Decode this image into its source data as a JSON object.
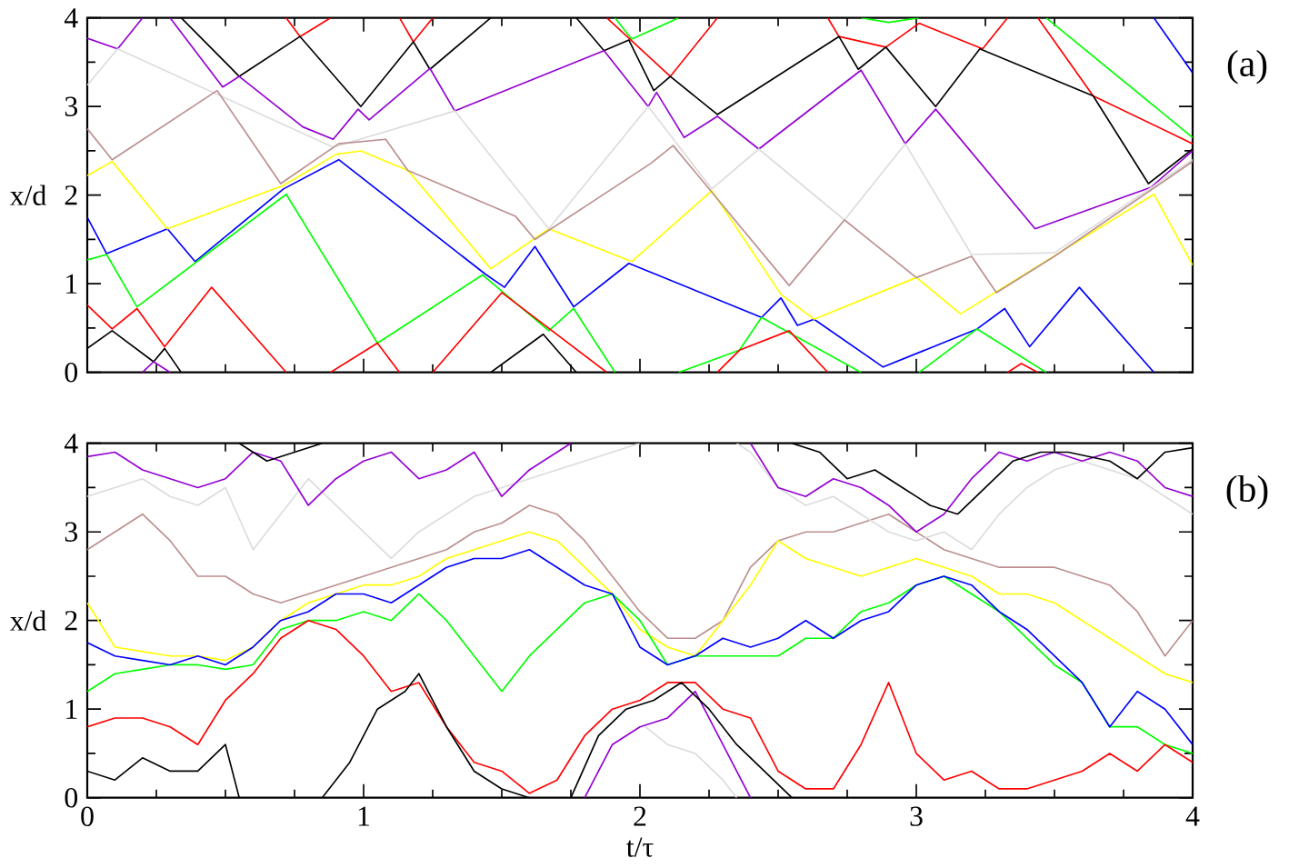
{
  "chart_data": [
    {
      "type": "line",
      "ylabel": "x/d",
      "annotations": [
        "(a)"
      ],
      "xlim": [
        0,
        4
      ],
      "ylim": [
        0,
        4
      ],
      "tick_labels": "y",
      "xticks": [
        0,
        {
          "value": 0.25,
          "label": null
        },
        {
          "value": 0.5,
          "label": null
        },
        {
          "value": 0.75,
          "label": null
        },
        1,
        {
          "value": 1.25,
          "label": null
        },
        {
          "value": 1.5,
          "label": null
        },
        {
          "value": 1.75,
          "label": null
        },
        2,
        {
          "value": 2.25,
          "label": null
        },
        {
          "value": 2.5,
          "label": null
        },
        {
          "value": 2.75,
          "label": null
        },
        3,
        {
          "value": 3.25,
          "label": null
        },
        {
          "value": 3.5,
          "label": null
        },
        {
          "value": 3.75,
          "label": null
        },
        4
      ],
      "yticks": [
        0,
        {
          "value": 0.5,
          "label": null
        },
        1,
        {
          "value": 1.5,
          "label": null
        },
        2,
        {
          "value": 2.5,
          "label": null
        },
        3,
        {
          "value": 3.5,
          "label": null
        },
        4
      ],
      "series": [
        {
          "color": "#0000ff",
          "x": [
            0,
            0.07,
            0.29,
            0.39,
            0.71,
            0.91,
            1.44,
            1.51,
            1.62,
            1.76,
            1.96,
            2.44,
            2.51,
            2.57,
            2.63,
            2.88,
            3.22,
            3.32,
            3.41,
            3.59,
            3.86
          ],
          "values": [
            1.75,
            1.34,
            1.62,
            1.25,
            2.07,
            2.4,
            1.11,
            0.96,
            1.42,
            0.74,
            1.23,
            0.62,
            0.84,
            0.53,
            0.6,
            0.06,
            0.49,
            0.72,
            0.29,
            0.96,
            0
          ]
        },
        {
          "color": "#0000ff",
          "x": [
            3.86,
            4
          ],
          "values": [
            4,
            3.38
          ]
        },
        {
          "color": "#ffff00",
          "x": [
            0,
            0.09,
            0.29,
            0.71,
            0.9,
            0.99,
            1.16,
            1.46,
            1.67,
            1.97,
            2.26,
            2.51,
            2.63,
            3.0,
            3.16,
            3.86,
            4
          ],
          "values": [
            2.22,
            2.38,
            1.62,
            2.11,
            2.46,
            2.5,
            2.28,
            1.17,
            1.62,
            1.25,
            2.05,
            0.88,
            0.6,
            1.07,
            0.66,
            2.01,
            1.21
          ]
        },
        {
          "color": "#00ff00",
          "x": [
            0,
            0.07,
            0.18,
            0.72,
            1.05,
            1.43,
            1.67,
            1.76,
            1.91
          ],
          "values": [
            1.27,
            1.33,
            0.74,
            2.01,
            0.33,
            1.1,
            0.47,
            0.72,
            0
          ]
        },
        {
          "color": "#00ff00",
          "x": [
            1.91,
            1.97,
            2.14
          ],
          "values": [
            4,
            3.76,
            4
          ]
        },
        {
          "color": "#00ff00",
          "x": [
            2.14,
            2.36,
            2.44,
            2.8
          ],
          "values": [
            0,
            0.25,
            0.62,
            0
          ]
        },
        {
          "color": "#00ff00",
          "x": [
            2.8,
            2.9,
            3.01
          ],
          "values": [
            4,
            3.95,
            4
          ]
        },
        {
          "color": "#00ff00",
          "x": [
            3.01,
            3.22,
            3.47
          ],
          "values": [
            0,
            0.49,
            0
          ]
        },
        {
          "color": "#00ff00",
          "x": [
            3.47,
            4
          ],
          "values": [
            4,
            2.65
          ]
        },
        {
          "color": "#ff0000",
          "x": [
            0,
            0.09,
            0.18,
            0.28,
            0.45,
            0.72
          ],
          "values": [
            0.76,
            0.49,
            0.72,
            0.29,
            0.96,
            0
          ]
        },
        {
          "color": "#ff0000",
          "x": [
            0.72,
            0.77,
            0.88
          ],
          "values": [
            4,
            3.79,
            4
          ]
        },
        {
          "color": "#ff0000",
          "x": [
            0.88,
            1.05,
            1.13
          ],
          "values": [
            0,
            0.33,
            0
          ]
        },
        {
          "color": "#ff0000",
          "x": [
            1.13,
            1.18,
            1.25
          ],
          "values": [
            4,
            3.73,
            4
          ]
        },
        {
          "color": "#ff0000",
          "x": [
            1.25,
            1.5,
            1.88
          ],
          "values": [
            0,
            0.9,
            0
          ]
        },
        {
          "color": "#ff0000",
          "x": [
            1.88,
            2.11,
            2.28
          ],
          "values": [
            4,
            3.34,
            4
          ]
        },
        {
          "color": "#ff0000",
          "x": [
            2.28,
            2.36,
            2.54,
            2.68
          ],
          "values": [
            0,
            0.25,
            0.47,
            0
          ]
        },
        {
          "color": "#ff0000",
          "x": [
            2.68,
            2.72,
            2.89,
            3.01,
            3.24,
            3.33
          ],
          "values": [
            4,
            3.79,
            3.67,
            3.94,
            3.65,
            4
          ]
        },
        {
          "color": "#ff0000",
          "x": [
            3.33,
            3.38,
            3.44
          ],
          "values": [
            0,
            0.1,
            0
          ]
        },
        {
          "color": "#ff0000",
          "x": [
            3.44,
            3.64,
            4
          ],
          "values": [
            4,
            3.12,
            2.58
          ]
        },
        {
          "color": "#000000",
          "x": [
            0,
            0.09,
            0.24,
            0.28,
            0.34
          ],
          "values": [
            0.27,
            0.47,
            0.12,
            0.27,
            0
          ]
        },
        {
          "color": "#000000",
          "x": [
            0.34,
            0.55,
            0.77,
            0.99,
            1.18,
            1.24,
            1.46
          ],
          "values": [
            4,
            3.34,
            3.79,
            3.0,
            3.73,
            3.42,
            4
          ]
        },
        {
          "color": "#000000",
          "x": [
            1.46,
            1.65,
            1.77
          ],
          "values": [
            0,
            0.43,
            0
          ]
        },
        {
          "color": "#000000",
          "x": [
            1.77,
            1.87,
            1.96,
            2.05,
            2.11,
            2.28,
            2.72,
            2.79,
            2.89,
            3.07,
            3.23,
            3.64,
            3.84,
            4
          ],
          "values": [
            4,
            3.63,
            3.75,
            3.18,
            3.34,
            2.91,
            3.79,
            3.42,
            3.67,
            3.0,
            3.65,
            3.12,
            2.13,
            2.52
          ]
        },
        {
          "color": "#9400d3",
          "x": [
            0,
            0.11,
            0.2
          ],
          "values": [
            3.77,
            3.65,
            4
          ]
        },
        {
          "color": "#9400d3",
          "x": [
            0.2,
            0.24,
            0.3
          ],
          "values": [
            0,
            0.12,
            0
          ]
        },
        {
          "color": "#9400d3",
          "x": [
            0.3,
            0.49,
            0.55,
            0.78,
            0.89,
            0.98,
            1.02,
            1.24,
            1.33,
            1.87,
            2.03,
            2.06,
            2.16,
            2.28,
            2.43,
            2.8,
            2.96,
            3.07,
            3.43,
            3.85,
            4
          ],
          "values": [
            4,
            3.22,
            3.34,
            2.77,
            2.63,
            2.97,
            2.85,
            3.43,
            2.95,
            3.63,
            3.0,
            3.16,
            2.65,
            2.89,
            2.52,
            3.41,
            2.58,
            2.97,
            1.62,
            2.09,
            2.5
          ]
        },
        {
          "color": "#dcdcdc",
          "x": [
            0,
            0.11,
            0.89,
            1.33,
            1.67,
            2.03,
            2.26,
            2.43,
            2.74,
            2.96,
            3.2,
            3.5,
            4
          ],
          "values": [
            3.24,
            3.65,
            2.54,
            2.95,
            1.62,
            3.0,
            2.07,
            2.52,
            1.72,
            2.58,
            1.33,
            1.35,
            2.4
          ]
        },
        {
          "color": "#bc8f8f",
          "x": [
            0,
            0.09,
            0.47,
            0.7,
            0.91,
            1.08,
            1.16,
            1.55,
            1.62,
            2.04,
            2.12,
            2.54,
            2.74,
            3.0,
            3.2,
            3.29,
            3.5,
            4
          ],
          "values": [
            2.75,
            2.4,
            3.18,
            2.13,
            2.58,
            2.63,
            2.28,
            1.76,
            1.5,
            2.36,
            2.56,
            0.98,
            1.72,
            1.07,
            1.31,
            0.9,
            1.31,
            2.38
          ]
        }
      ]
    },
    {
      "type": "line",
      "xlabel": "t/τ",
      "ylabel": "x/d",
      "annotations": [
        "(b)"
      ],
      "xlim": [
        0,
        4
      ],
      "ylim": [
        0,
        4
      ],
      "xticks": [
        0,
        {
          "value": 0.25,
          "label": null
        },
        {
          "value": 0.5,
          "label": null
        },
        {
          "value": 0.75,
          "label": null
        },
        1,
        {
          "value": 1.25,
          "label": null
        },
        {
          "value": 1.5,
          "label": null
        },
        {
          "value": 1.75,
          "label": null
        },
        2,
        {
          "value": 2.25,
          "label": null
        },
        {
          "value": 2.5,
          "label": null
        },
        {
          "value": 2.75,
          "label": null
        },
        3,
        {
          "value": 3.25,
          "label": null
        },
        {
          "value": 3.5,
          "label": null
        },
        {
          "value": 3.75,
          "label": null
        },
        4
      ],
      "yticks": [
        0,
        {
          "value": 0.5,
          "label": null
        },
        1,
        {
          "value": 1.5,
          "label": null
        },
        2,
        {
          "value": 2.5,
          "label": null
        },
        3,
        {
          "value": 3.5,
          "label": null
        },
        4
      ],
      "x": [
        0,
        0.1,
        0.2,
        0.3,
        0.4,
        0.5,
        0.6,
        0.7,
        0.8,
        0.9,
        1.0,
        1.1,
        1.2,
        1.3,
        1.4,
        1.5,
        1.6,
        1.7,
        1.8,
        1.9,
        2.0,
        2.1,
        2.2,
        2.3,
        2.4,
        2.5,
        2.6,
        2.7,
        2.8,
        2.9,
        3.0,
        3.1,
        3.2,
        3.3,
        3.4,
        3.5,
        3.6,
        3.7,
        3.8,
        3.9,
        4.0
      ],
      "series": [
        {
          "color": "#bc8f8f",
          "values": [
            2.8,
            3.0,
            3.2,
            2.9,
            2.5,
            2.5,
            2.3,
            2.2,
            2.3,
            2.4,
            2.5,
            2.6,
            2.7,
            2.8,
            3.0,
            3.1,
            3.3,
            3.2,
            2.9,
            2.5,
            2.1,
            1.8,
            1.8,
            2.0,
            2.6,
            2.9,
            3.0,
            3.0,
            3.1,
            3.2,
            3.0,
            2.8,
            2.7,
            2.6,
            2.6,
            2.6,
            2.5,
            2.4,
            2.1,
            1.6,
            2.0
          ]
        },
        {
          "color": "#dcdcdc",
          "x": [
            0,
            0.1,
            0.2,
            0.3,
            0.4,
            0.5,
            0.6,
            0.7,
            0.8,
            0.9,
            1.0,
            1.1,
            1.2,
            1.3,
            1.4,
            1.5,
            1.6,
            1.7,
            1.8,
            1.9,
            2.0
          ],
          "values": [
            3.4,
            3.5,
            3.6,
            3.4,
            3.3,
            3.5,
            2.8,
            3.2,
            3.6,
            3.3,
            3.0,
            2.7,
            3.0,
            3.2,
            3.4,
            3.5,
            3.6,
            3.7,
            3.8,
            3.9,
            4.0
          ]
        },
        {
          "color": "#dcdcdc",
          "x": [
            2.02,
            2.1,
            2.2,
            2.3,
            2.35
          ],
          "values": [
            0.8,
            0.6,
            0.5,
            0.2,
            0
          ]
        },
        {
          "color": "#dcdcdc",
          "x": [
            2.35,
            2.4,
            2.5,
            2.6,
            2.7,
            2.8,
            2.9,
            3.0,
            3.1,
            3.2,
            3.3,
            3.4,
            3.5,
            3.6,
            3.7,
            3.8,
            3.9,
            4.0
          ],
          "values": [
            4.0,
            3.9,
            3.5,
            3.3,
            3.4,
            3.2,
            3.0,
            2.9,
            3.0,
            2.8,
            3.2,
            3.5,
            3.7,
            3.8,
            3.7,
            3.6,
            3.4,
            3.2
          ]
        },
        {
          "color": "#ffff00",
          "values": [
            2.2,
            1.7,
            1.65,
            1.6,
            1.6,
            1.55,
            1.7,
            2.0,
            2.2,
            2.3,
            2.4,
            2.4,
            2.5,
            2.7,
            2.8,
            2.9,
            3.0,
            2.9,
            2.6,
            2.3,
            1.9,
            1.7,
            1.6,
            2.0,
            2.4,
            2.9,
            2.7,
            2.6,
            2.5,
            2.6,
            2.7,
            2.6,
            2.5,
            2.3,
            2.3,
            2.2,
            2.0,
            1.8,
            1.6,
            1.4,
            1.3
          ]
        },
        {
          "color": "#00ff00",
          "values": [
            1.2,
            1.4,
            1.45,
            1.5,
            1.5,
            1.45,
            1.5,
            1.9,
            2.0,
            2.0,
            2.1,
            2.0,
            2.3,
            2.0,
            1.6,
            1.2,
            1.6,
            1.9,
            2.2,
            2.3,
            2.0,
            1.5,
            1.6,
            1.6,
            1.6,
            1.6,
            1.8,
            1.8,
            2.1,
            2.2,
            2.4,
            2.5,
            2.3,
            2.1,
            1.8,
            1.5,
            1.3,
            0.8,
            0.8,
            0.6,
            0.5
          ]
        },
        {
          "color": "#0000ff",
          "values": [
            1.75,
            1.6,
            1.55,
            1.5,
            1.6,
            1.5,
            1.7,
            2.0,
            2.1,
            2.3,
            2.3,
            2.2,
            2.4,
            2.6,
            2.7,
            2.7,
            2.8,
            2.6,
            2.4,
            2.3,
            1.7,
            1.5,
            1.6,
            1.8,
            1.7,
            1.8,
            2.0,
            1.8,
            2.0,
            2.1,
            2.4,
            2.5,
            2.4,
            2.1,
            1.9,
            1.6,
            1.3,
            0.8,
            1.2,
            1.0,
            0.6
          ]
        },
        {
          "color": "#ff0000",
          "values": [
            0.8,
            0.9,
            0.9,
            0.8,
            0.6,
            1.1,
            1.4,
            1.8,
            2.0,
            1.9,
            1.6,
            1.2,
            1.3,
            0.8,
            0.4,
            0.3,
            0.05,
            0.2,
            0.7,
            1.0,
            1.1,
            1.3,
            1.3,
            1.0,
            0.9,
            0.3,
            0.1,
            0.1,
            0.6,
            1.3,
            0.5,
            0.2,
            0.3,
            0.1,
            0.1,
            0.2,
            0.3,
            0.5,
            0.3,
            0.6,
            0.4
          ]
        },
        {
          "color": "#9400d3",
          "x": [
            0,
            0.1,
            0.2,
            0.3,
            0.4,
            0.5,
            0.6,
            0.7,
            0.8,
            0.9,
            1.0,
            1.1,
            1.2,
            1.3,
            1.4,
            1.5,
            1.6,
            1.7,
            1.75
          ],
          "values": [
            3.85,
            3.9,
            3.7,
            3.6,
            3.5,
            3.6,
            3.9,
            3.8,
            3.3,
            3.6,
            3.8,
            3.9,
            3.6,
            3.7,
            3.9,
            3.4,
            3.7,
            3.9,
            4
          ]
        },
        {
          "color": "#9400d3",
          "x": [
            1.8,
            1.9,
            2.0,
            2.1,
            2.2,
            2.3,
            2.4
          ],
          "values": [
            0,
            0.6,
            0.8,
            0.9,
            1.2,
            0.6,
            0
          ]
        },
        {
          "color": "#9400d3",
          "x": [
            2.4,
            2.5,
            2.6,
            2.7,
            2.8,
            2.9,
            3.0,
            3.1,
            3.2,
            3.3,
            3.4,
            3.5,
            3.6,
            3.7,
            3.8,
            3.9,
            4.0
          ],
          "values": [
            4,
            3.5,
            3.4,
            3.6,
            3.5,
            3.3,
            3.0,
            3.2,
            3.6,
            3.9,
            3.8,
            3.9,
            3.8,
            3.9,
            3.8,
            3.5,
            3.4
          ]
        },
        {
          "color": "#000000",
          "x": [
            0,
            0.1,
            0.2,
            0.3,
            0.4,
            0.5,
            0.55
          ],
          "values": [
            0.3,
            0.2,
            0.45,
            0.3,
            0.3,
            0.6,
            0
          ]
        },
        {
          "color": "#000000",
          "x": [
            0.55,
            0.65,
            0.75,
            0.85
          ],
          "values": [
            4,
            3.8,
            3.9,
            4
          ]
        },
        {
          "color": "#000000",
          "x": [
            0.85,
            0.95,
            1.05,
            1.15,
            1.2,
            1.3,
            1.4,
            1.5,
            1.6
          ],
          "values": [
            0,
            0.4,
            1.0,
            1.2,
            1.4,
            0.8,
            0.3,
            0.1,
            0
          ]
        },
        {
          "color": "#000000",
          "x": [
            1.75,
            1.85,
            1.95,
            2.05,
            2.15,
            2.25,
            2.35,
            2.45,
            2.55
          ],
          "values": [
            0,
            0.7,
            1.0,
            1.1,
            1.3,
            1.0,
            0.6,
            0.3,
            0
          ]
        },
        {
          "color": "#000000",
          "x": [
            2.55,
            2.65,
            2.75,
            2.85,
            2.95,
            3.05,
            3.15,
            3.25,
            3.35,
            3.45,
            3.55,
            3.7,
            3.8,
            3.9,
            4
          ],
          "values": [
            4,
            3.9,
            3.6,
            3.7,
            3.5,
            3.3,
            3.2,
            3.5,
            3.8,
            3.9,
            3.9,
            3.8,
            3.6,
            3.9,
            3.95
          ]
        }
      ]
    }
  ]
}
